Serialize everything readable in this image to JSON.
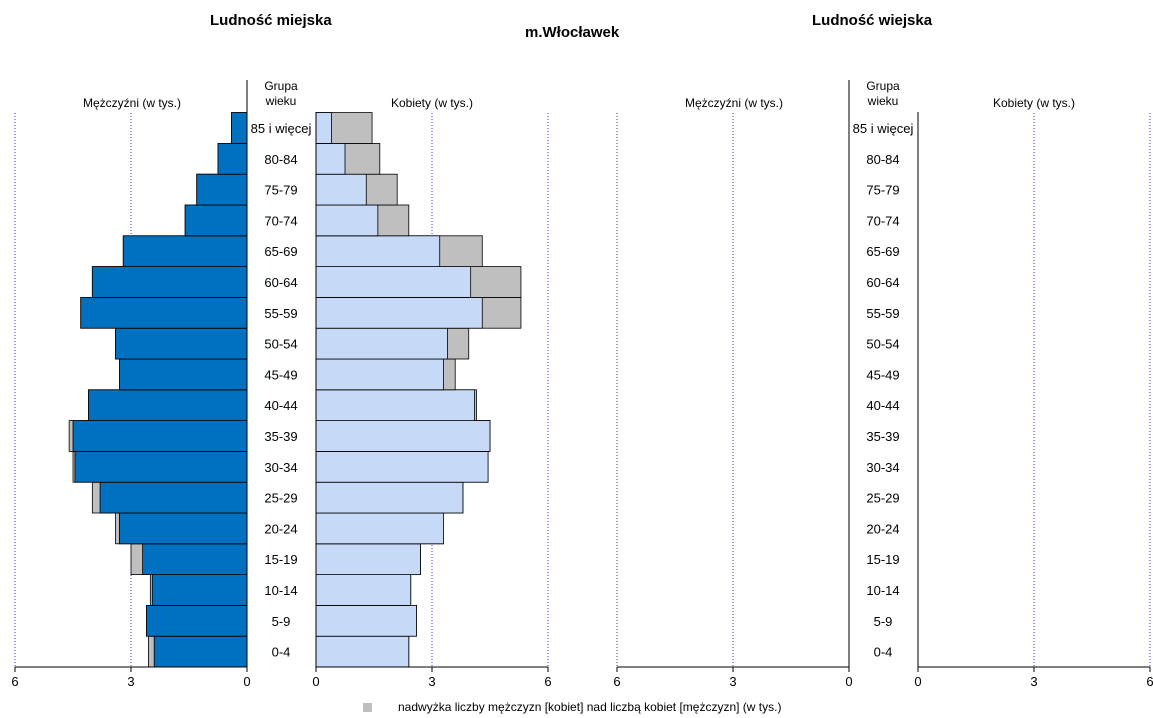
{
  "header": {
    "left_title": "Ludność miejska",
    "center_title": "m.Włocławek",
    "right_title": "Ludność wiejska"
  },
  "panels": {
    "men_label": "Mężczyźni (w tys.)",
    "women_label": "Kobiety (w tys.)",
    "group_label_line1": "Grupa",
    "group_label_line2": "wieku"
  },
  "legend": {
    "text": "nadwyżka liczby mężczyzn [kobiet] nad liczbą kobiet [mężczyzn] (w tys.)"
  },
  "colors": {
    "men": "#0070c0",
    "women": "#c6d9f7",
    "surplus": "#bfbfbf",
    "gridline": "#3333cc",
    "axis": "#000000"
  },
  "chart_data": [
    {
      "type": "bar",
      "subtype": "population-pyramid",
      "title": "Ludność miejska",
      "xlabel_left": "Mężczyźni (w tys.)",
      "xlabel_right": "Kobiety (w tys.)",
      "xlim": [
        0,
        6
      ],
      "xticks": [
        6,
        3,
        0
      ],
      "gridlines_at": [
        3,
        6
      ],
      "categories": [
        "0-4",
        "5-9",
        "10-14",
        "15-19",
        "20-24",
        "25-29",
        "30-34",
        "35-39",
        "40-44",
        "45-49",
        "50-54",
        "55-59",
        "60-64",
        "65-69",
        "70-74",
        "75-79",
        "80-84",
        "85 i więcej"
      ],
      "series": [
        {
          "name": "Mężczyźni",
          "values": [
            2.55,
            2.6,
            2.5,
            3.0,
            3.4,
            4.0,
            4.5,
            4.6,
            4.1,
            3.3,
            3.4,
            4.3,
            4.0,
            3.2,
            1.6,
            1.3,
            0.75,
            0.4
          ]
        },
        {
          "name": "Kobiety",
          "values": [
            2.4,
            2.6,
            2.45,
            2.7,
            3.3,
            3.8,
            4.45,
            4.5,
            4.15,
            3.6,
            3.95,
            5.3,
            5.3,
            4.3,
            2.4,
            2.1,
            1.65,
            1.45
          ]
        }
      ]
    },
    {
      "type": "bar",
      "subtype": "population-pyramid",
      "title": "Ludność wiejska",
      "xlabel_left": "Mężczyźni (w tys.)",
      "xlabel_right": "Kobiety (w tys.)",
      "xlim": [
        0,
        6
      ],
      "xticks": [
        6,
        3,
        0
      ],
      "gridlines_at": [
        3,
        6
      ],
      "categories": [
        "0-4",
        "5-9",
        "10-14",
        "15-19",
        "20-24",
        "25-29",
        "30-34",
        "35-39",
        "40-44",
        "45-49",
        "50-54",
        "55-59",
        "60-64",
        "65-69",
        "70-74",
        "75-79",
        "80-84",
        "85 i więcej"
      ],
      "series": [
        {
          "name": "Mężczyźni",
          "values": [
            0,
            0,
            0,
            0,
            0,
            0,
            0,
            0,
            0,
            0,
            0,
            0,
            0,
            0,
            0,
            0,
            0,
            0
          ]
        },
        {
          "name": "Kobiety",
          "values": [
            0,
            0,
            0,
            0,
            0,
            0,
            0,
            0,
            0,
            0,
            0,
            0,
            0,
            0,
            0,
            0,
            0,
            0
          ]
        }
      ]
    }
  ]
}
